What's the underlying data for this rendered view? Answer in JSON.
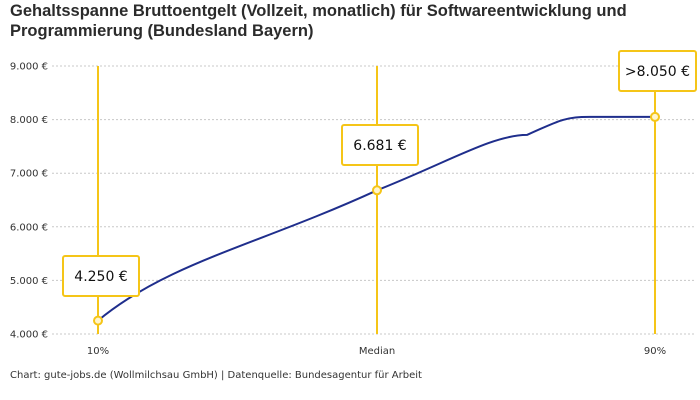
{
  "title": "Gehaltsspanne Bruttoentgelt (Vollzeit, monatlich) für Softwareentwicklung und Programmierung (Bundesland Bayern)",
  "footer": "Chart: gute-jobs.de (Wollmilchsau GmbH) | Datenquelle: Bundesagentur für Arbeit",
  "colors": {
    "line": "#1f2e8c",
    "accent": "#f5c518",
    "grid": "#c8c8c8",
    "marker_fill": "#fff5cc"
  },
  "chart_data": {
    "type": "line",
    "title": "Gehaltsspanne Bruttoentgelt (Vollzeit, monatlich) für Softwareentwicklung und Programmierung (Bundesland Bayern)",
    "categories": [
      "10%",
      "Median",
      "90%"
    ],
    "values": [
      4250,
      6681,
      8050
    ],
    "data_labels": [
      "4.250 €",
      "6.681 €",
      ">8.050 €"
    ],
    "y_ticks": [
      4000,
      5000,
      6000,
      7000,
      8000,
      9000
    ],
    "y_tick_labels": [
      "4.000 €",
      "5.000 €",
      "6.000 €",
      "7.000 €",
      "8.000 €",
      "9.000 €"
    ],
    "ylim": [
      4000,
      9000
    ],
    "grid": true,
    "xlabel": "",
    "ylabel": ""
  }
}
